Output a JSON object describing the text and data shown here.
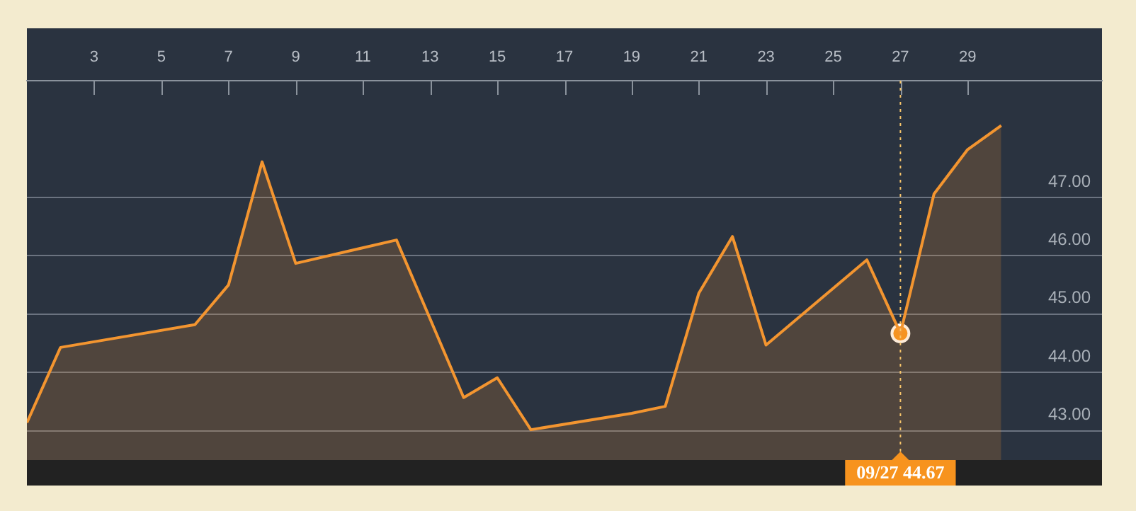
{
  "chart_data": {
    "type": "area",
    "x": [
      1,
      2,
      6,
      7,
      8,
      9,
      12,
      14,
      15,
      16,
      19,
      20,
      21,
      22,
      23,
      26,
      27,
      28,
      29,
      30
    ],
    "series": [
      {
        "color": "#f39530",
        "values": [
          43.14,
          44.43,
          44.82,
          45.5,
          47.61,
          45.87,
          46.27,
          43.57,
          43.91,
          43.02,
          43.3,
          43.42,
          45.36,
          46.33,
          44.47,
          45.93,
          44.67,
          47.06,
          47.82,
          48.23
        ]
      },
      {
        "type": "scatter",
        "color": "#f7931e",
        "x": [
          27
        ],
        "values": [
          44.67
        ]
      }
    ],
    "xlim": [
      1,
      33
    ],
    "xticks": [
      3,
      5,
      7,
      9,
      11,
      13,
      15,
      17,
      19,
      21,
      23,
      25,
      27,
      29
    ],
    "ylim": [
      42.5,
      49
    ],
    "yticks": [
      {
        "value": 43,
        "label": "43.00"
      },
      {
        "value": 44,
        "label": "44.00"
      },
      {
        "value": 45,
        "label": "45.00"
      },
      {
        "value": 46,
        "label": "46.00"
      },
      {
        "value": 47,
        "label": "47.00"
      }
    ],
    "grid": "y",
    "legend": false,
    "line_style": "solid",
    "ref_lines": [
      {
        "axis": "x",
        "value": 27,
        "color": "#f7c56a",
        "line_style": "dotted"
      }
    ],
    "annotations": [
      "09/27 44.67"
    ]
  }
}
